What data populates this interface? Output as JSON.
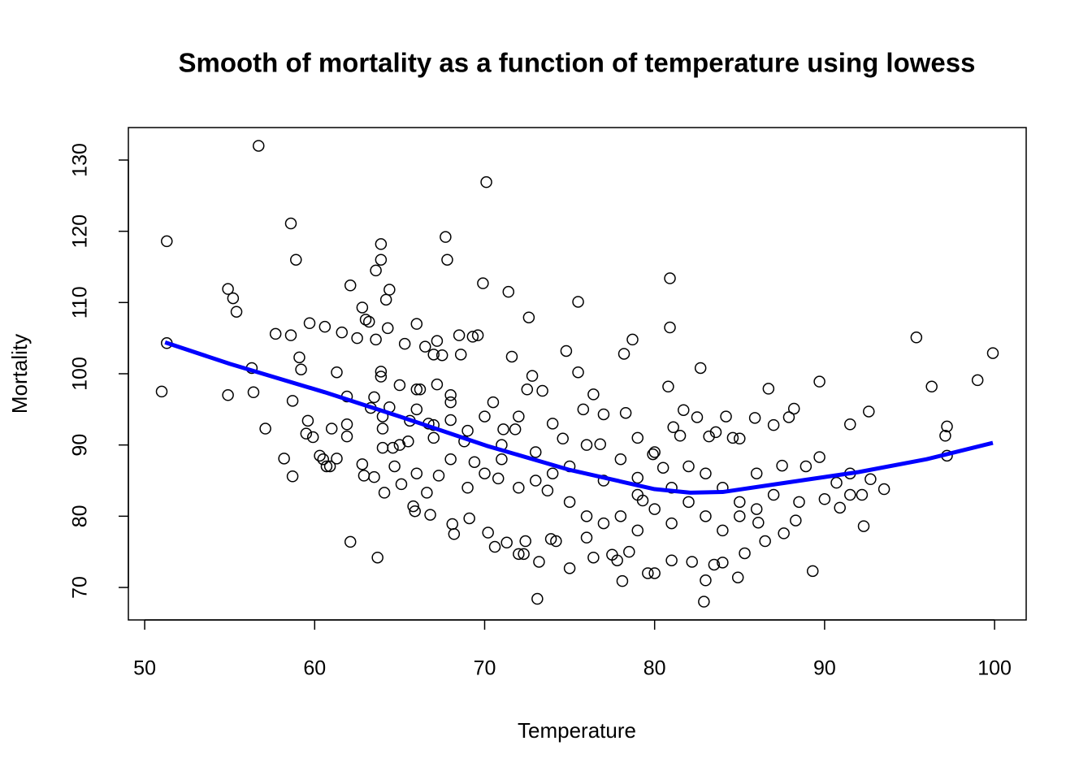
{
  "chart_data": {
    "type": "scatter",
    "title": "Smooth of mortality as a function of temperature using lowess",
    "xlabel": "Temperature",
    "ylabel": "Mortality",
    "xlim": [
      49.04,
      101.86
    ],
    "ylim": [
      65.44,
      134.56
    ],
    "xticks": [
      50,
      60,
      70,
      80,
      90,
      100
    ],
    "yticks": [
      70,
      80,
      90,
      100,
      110,
      120,
      130
    ],
    "series": [
      {
        "type": "scatter",
        "color": "#000000",
        "x": [
          51,
          51.3,
          51.3,
          54.9,
          55.2,
          55.4,
          54.9,
          56.3,
          56.4,
          56.7,
          57.1,
          57.7,
          58.2,
          58.6,
          58.6,
          58.7,
          58.7,
          58.9,
          59.1,
          59.2,
          59.5,
          59.6,
          59.7,
          59.9,
          60.3,
          60.5,
          60.6,
          60.7,
          60.9,
          61,
          61.3,
          61.3,
          61.6,
          61.9,
          61.9,
          61.9,
          62.1,
          62.1,
          62.5,
          62.8,
          62.8,
          62.9,
          63,
          63.2,
          63.3,
          63.5,
          63.5,
          63.6,
          63.6,
          63.7,
          63.9,
          63.9,
          63.9,
          63.9,
          64,
          64,
          64.1,
          64.2,
          64.3,
          64.4,
          64.4,
          64.6,
          64.7,
          65,
          65.1,
          65.3,
          65.5,
          65.6,
          65.8,
          65.9,
          66,
          66,
          66.2,
          66.5,
          66.6,
          66.7,
          66.8,
          67,
          67,
          67.2,
          67.2,
          67.3,
          67.5,
          67.7,
          67.8,
          68,
          68,
          68.1,
          68.2,
          68.5,
          68.6,
          68.8,
          69.1,
          69.3,
          69.4,
          69.6,
          69.9,
          70.1,
          70.2,
          70.5,
          70.6,
          70.8,
          71.1,
          71.3,
          71.4,
          71.6,
          71.8,
          72,
          72.3,
          72.4,
          72.5,
          72.6,
          72.8,
          73.1,
          73.2,
          73.4,
          73.7,
          73.9,
          74.2,
          74.6,
          74.8,
          75,
          75.5,
          75.5,
          75.8,
          76,
          76.4,
          76.4,
          76.8,
          77,
          77.5,
          77.8,
          78.1,
          78.2,
          78.3,
          78.5,
          78.7,
          79,
          79,
          79.3,
          79.6,
          79.9,
          80,
          80.5,
          80.8,
          80.9,
          80.9,
          81,
          81.1,
          81.5,
          81.7,
          82.2,
          82.5,
          82.7,
          82.9,
          83,
          83.2,
          83.5,
          83.6,
          84,
          84.2,
          84.6,
          84.9,
          85,
          85.3,
          85.9,
          86.1,
          86.5,
          86.7,
          87,
          87.5,
          87.6,
          87.9,
          88.2,
          88.3,
          88.5,
          88.9,
          89.3,
          89.7,
          89.7,
          90,
          90.7,
          90.9,
          91.5,
          91.5,
          91.5,
          92.2,
          92.3,
          92.6,
          92.7,
          93.5,
          95.4,
          96.3,
          97.1,
          97.2,
          97.2,
          99,
          99.9,
          66,
          68,
          69,
          70,
          71,
          72,
          73,
          74,
          75,
          76,
          77,
          78,
          79,
          80,
          81,
          82,
          83,
          84,
          85,
          86,
          65,
          67,
          69,
          71,
          73,
          75,
          77,
          79,
          81,
          83,
          85,
          87,
          64,
          66,
          68,
          70,
          72,
          74,
          76,
          78,
          80,
          82,
          84,
          86
        ],
        "values": [
          97.5,
          118.6,
          104.3,
          111.9,
          110.6,
          108.7,
          97,
          100.8,
          97.4,
          132,
          92.3,
          105.6,
          88.1,
          121.1,
          105.4,
          96.2,
          85.6,
          116,
          102.3,
          100.6,
          91.6,
          93.4,
          107.1,
          91.1,
          88.5,
          88,
          106.6,
          87,
          87,
          92.3,
          100.2,
          88.1,
          105.8,
          96.8,
          92.9,
          91.2,
          76.4,
          112.4,
          105,
          109.3,
          87.3,
          85.7,
          107.6,
          107.3,
          95.2,
          96.7,
          85.5,
          114.5,
          104.8,
          74.2,
          118.2,
          116,
          100.3,
          99.6,
          92.3,
          89.6,
          83.3,
          110.4,
          106.4,
          95.3,
          111.8,
          89.6,
          87,
          98.4,
          84.5,
          104.2,
          90.5,
          93.4,
          81.4,
          80.7,
          107,
          97.8,
          97.8,
          103.8,
          83.3,
          93,
          80.2,
          102.7,
          92.8,
          104.6,
          98.5,
          85.7,
          102.6,
          119.2,
          116,
          96,
          93.5,
          78.9,
          77.5,
          105.4,
          102.7,
          90.5,
          79.7,
          105.2,
          87.6,
          105.4,
          112.7,
          126.9,
          77.7,
          96,
          75.7,
          85.3,
          92.2,
          76.3,
          111.5,
          102.4,
          92.2,
          74.7,
          74.7,
          76.5,
          97.8,
          107.9,
          99.7,
          68.4,
          73.6,
          97.6,
          83.6,
          76.8,
          76.5,
          90.9,
          103.2,
          72.7,
          110.1,
          100.2,
          95,
          77,
          97.1,
          74.2,
          90.1,
          94.3,
          74.6,
          73.8,
          70.9,
          102.8,
          94.5,
          75,
          104.8,
          91,
          85.4,
          82.2,
          72,
          88.7,
          72,
          86.8,
          98.2,
          113.4,
          106.5,
          73.8,
          92.5,
          91.3,
          94.9,
          73.6,
          93.9,
          100.8,
          68,
          71,
          91.2,
          73.2,
          91.8,
          73.5,
          94,
          91,
          71.4,
          90.9,
          74.8,
          93.8,
          79.1,
          76.5,
          97.9,
          92.8,
          87.1,
          77.6,
          93.9,
          95.1,
          79.4,
          82,
          87,
          72.3,
          98.9,
          88.3,
          82.4,
          84.7,
          81.2,
          86,
          92.9,
          83,
          83,
          78.6,
          94.7,
          85.2,
          83.8,
          105.1,
          98.2,
          91.3,
          92.6,
          88.5,
          99.1,
          102.9,
          86,
          88,
          84,
          86,
          88,
          84,
          85,
          86,
          82,
          80,
          79,
          80,
          78,
          81,
          79,
          82,
          80,
          78,
          80,
          81,
          90,
          91,
          92,
          90,
          89,
          87,
          85,
          83,
          84,
          86,
          82,
          83,
          94,
          95,
          97,
          94,
          94,
          93,
          90,
          88,
          89,
          87,
          84,
          86
        ]
      },
      {
        "type": "line",
        "color": "#0000ff",
        "x": [
          51.2,
          55,
          60.6,
          65,
          70.1,
          75,
          80,
          82.1,
          84,
          88,
          92,
          96,
          99.9
        ],
        "values": [
          104.4,
          101.4,
          97.4,
          94,
          89.9,
          86.5,
          83.8,
          83.3,
          83.4,
          84.8,
          86.2,
          88,
          90.3
        ]
      }
    ]
  }
}
